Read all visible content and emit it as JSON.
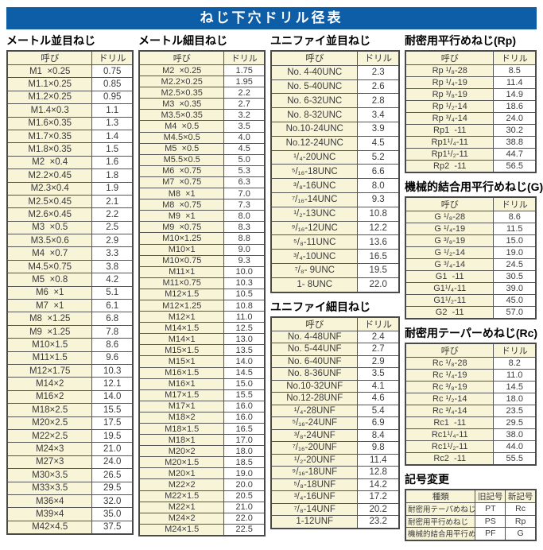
{
  "title": "ねじ下穴ドリル径表",
  "col_headers": {
    "name": "呼び",
    "drill": "ドリル"
  },
  "colors": {
    "header_bar_bg": "#0d5da7",
    "header_bar_text": "#ffffff",
    "cell_yellow": "#f8f4d8",
    "cell_white": "#ffffff",
    "border": "#4a4a4a",
    "text": "#3a3a3a"
  },
  "sections": {
    "metric_coarse": {
      "title": "メートル並目ねじ",
      "rows": [
        [
          "M1  ×0.25",
          "0.75"
        ],
        [
          "M1.1×0.25",
          "0.85"
        ],
        [
          "M1.2×0.25",
          "0.95"
        ],
        [
          "M1.4×0.3",
          "1.1"
        ],
        [
          "M1.6×0.35",
          "1.3"
        ],
        [
          "M1.7×0.35",
          "1.4"
        ],
        [
          "M1.8×0.35",
          "1.5"
        ],
        [
          "M2  ×0.4",
          "1.6"
        ],
        [
          "M2.2×0.45",
          "1.8"
        ],
        [
          "M2.3×0.4",
          "1.9"
        ],
        [
          "M2.5×0.45",
          "2.1"
        ],
        [
          "M2.6×0.45",
          "2.2"
        ],
        [
          "M3  ×0.5",
          "2.5"
        ],
        [
          "M3.5×0.6",
          "2.9"
        ],
        [
          "M4  ×0.7",
          "3.3"
        ],
        [
          "M4.5×0.75",
          "3.8"
        ],
        [
          "M5  ×0.8",
          "4.2"
        ],
        [
          "M6  ×1",
          "5.1"
        ],
        [
          "M7  ×1",
          "6.1"
        ],
        [
          "M8  ×1.25",
          "6.8"
        ],
        [
          "M9  ×1.25",
          "7.8"
        ],
        [
          "M10×1.5",
          "8.6"
        ],
        [
          "M11×1.5",
          "9.6"
        ],
        [
          "M12×1.75",
          "10.3"
        ],
        [
          "M14×2",
          "12.1"
        ],
        [
          "M16×2",
          "14.0"
        ],
        [
          "M18×2.5",
          "15.5"
        ],
        [
          "M20×2.5",
          "17.5"
        ],
        [
          "M22×2.5",
          "19.5"
        ],
        [
          "M24×3",
          "21.0"
        ],
        [
          "M27×3",
          "24.0"
        ],
        [
          "M30×3.5",
          "26.5"
        ],
        [
          "M33×3.5",
          "29.5"
        ],
        [
          "M36×4",
          "32.0"
        ],
        [
          "M39×4",
          "35.0"
        ],
        [
          "M42×4.5",
          "37.5"
        ]
      ]
    },
    "metric_fine": {
      "title": "メートル細目ねじ",
      "rows": [
        [
          "M2  ×0.25",
          "1.75"
        ],
        [
          "M2.2×0.25",
          "1.95"
        ],
        [
          "M2.5×0.35",
          "2.2"
        ],
        [
          "M3  ×0.35",
          "2.7"
        ],
        [
          "M3.5×0.35",
          "3.2"
        ],
        [
          "M4  ×0.5",
          "3.5"
        ],
        [
          "M4.5×0.5",
          "4.0"
        ],
        [
          "M5  ×0.5",
          "4.5"
        ],
        [
          "M5.5×0.5",
          "5.0"
        ],
        [
          "M6  ×0.75",
          "5.3"
        ],
        [
          "M7  ×0.75",
          "6.3"
        ],
        [
          "M8  ×1",
          "7.0"
        ],
        [
          "M8  ×0.75",
          "7.3"
        ],
        [
          "M9  ×1",
          "8.0"
        ],
        [
          "M9  ×0.75",
          "8.3"
        ],
        [
          "M10×1.25",
          "8.8"
        ],
        [
          "M10×1",
          "9.0"
        ],
        [
          "M10×0.75",
          "9.3"
        ],
        [
          "M11×1",
          "10.0"
        ],
        [
          "M11×0.75",
          "10.3"
        ],
        [
          "M12×1.5",
          "10.5"
        ],
        [
          "M12×1.25",
          "10.8"
        ],
        [
          "M12×1",
          "11.0"
        ],
        [
          "M14×1.5",
          "12.5"
        ],
        [
          "M14×1",
          "13.0"
        ],
        [
          "M15×1.5",
          "13.5"
        ],
        [
          "M15×1",
          "14.0"
        ],
        [
          "M16×1.5",
          "14.5"
        ],
        [
          "M16×1",
          "15.0"
        ],
        [
          "M17×1.5",
          "15.5"
        ],
        [
          "M17×1",
          "16.0"
        ],
        [
          "M18×2",
          "16.0"
        ],
        [
          "M18×1.5",
          "16.5"
        ],
        [
          "M18×1",
          "17.0"
        ],
        [
          "M20×2",
          "18.0"
        ],
        [
          "M20×1.5",
          "18.5"
        ],
        [
          "M20×1",
          "19.0"
        ],
        [
          "M22×2",
          "20.0"
        ],
        [
          "M22×1.5",
          "20.5"
        ],
        [
          "M22×1",
          "21.0"
        ],
        [
          "M24×2",
          "22.0"
        ],
        [
          "M24×1.5",
          "22.5"
        ]
      ]
    },
    "unified_coarse": {
      "title": "ユニファイ並目ねじ",
      "rows": [
        [
          "No. 4-40UNC",
          "2.3"
        ],
        [
          "No. 5-40UNC",
          "2.6"
        ],
        [
          "No. 6-32UNC",
          "2.8"
        ],
        [
          "No. 8-32UNC",
          "3.4"
        ],
        [
          "No.10-24UNC",
          "3.9"
        ],
        [
          "No.12-24UNC",
          "4.5"
        ],
        [
          "¹/₄-20UNC",
          "5.2"
        ],
        [
          "⁵/₁₆-18UNC",
          "6.6"
        ],
        [
          "³/₈-16UNC",
          "8.0"
        ],
        [
          "⁷/₁₆-14UNC",
          "9.3"
        ],
        [
          "¹/₂-13UNC",
          "10.8"
        ],
        [
          "⁹/₁₆-12UNC",
          "12.2"
        ],
        [
          "⁵/₈-11UNC",
          "13.6"
        ],
        [
          "³/₄-10UNC",
          "16.5"
        ],
        [
          "⁷/₈- 9UNC",
          "19.5"
        ],
        [
          "1- 8UNC",
          "22.0"
        ]
      ]
    },
    "unified_fine": {
      "title": "ユニファイ細目ねじ",
      "rows": [
        [
          "No. 4-48UNF",
          "2.4"
        ],
        [
          "No. 5-44UNF",
          "2.7"
        ],
        [
          "No. 6-40UNF",
          "2.9"
        ],
        [
          "No. 8-36UNF",
          "3.5"
        ],
        [
          "No.10-32UNF",
          "4.1"
        ],
        [
          "No.12-28UNF",
          "4.6"
        ],
        [
          "¹/₄-28UNF",
          "5.4"
        ],
        [
          "⁵/₁₆-24UNF",
          "6.9"
        ],
        [
          "³/₈-24UNF",
          "8.4"
        ],
        [
          "⁷/₁₆-20UNF",
          "9.8"
        ],
        [
          "¹/₂-20UNF",
          "11.4"
        ],
        [
          "⁹/₁₆-18UNF",
          "12.8"
        ],
        [
          "⁵/₈-18UNF",
          "14.2"
        ],
        [
          "³/₄-16UNF",
          "17.2"
        ],
        [
          "⁷/₈-14UNF",
          "20.2"
        ],
        [
          "1-12UNF",
          "23.2"
        ]
      ]
    },
    "rp": {
      "title": "耐密用平行めねじ(Rp)",
      "rows": [
        [
          "Rp ¹/₈-28",
          "8.5"
        ],
        [
          "Rp ¹/₄-19",
          "11.4"
        ],
        [
          "Rp ³/₈-19",
          "14.9"
        ],
        [
          "Rp ¹/₂-14",
          "18.6"
        ],
        [
          "Rp ³/₄-14",
          "24.0"
        ],
        [
          "Rp1  -11",
          "30.2"
        ],
        [
          "Rp1¹/₄-11",
          "38.8"
        ],
        [
          "Rp1¹/₂-11",
          "44.7"
        ],
        [
          "Rp2  -11",
          "56.5"
        ]
      ]
    },
    "g": {
      "title": "機械的結合用平行めねじ(G)",
      "rows": [
        [
          "G ¹/₈-28",
          "8.6"
        ],
        [
          "G ¹/₄-19",
          "11.5"
        ],
        [
          "G ³/₈-19",
          "15.0"
        ],
        [
          "G ¹/₂-14",
          "19.0"
        ],
        [
          "G ³/₄-14",
          "24.5"
        ],
        [
          "G1  -11",
          "30.5"
        ],
        [
          "G1¹/₄-11",
          "39.0"
        ],
        [
          "G1¹/₂-11",
          "45.0"
        ],
        [
          "G2  -11",
          "57.0"
        ]
      ]
    },
    "rc": {
      "title": "耐密用テーパーめねじ(Rc)",
      "rows": [
        [
          "Rc ¹/₈-28",
          "8.2"
        ],
        [
          "Rc ¹/₄-19",
          "11.0"
        ],
        [
          "Rc ³/₈-19",
          "14.5"
        ],
        [
          "Rc ¹/₂-14",
          "18.0"
        ],
        [
          "Rc ³/₄-14",
          "23.5"
        ],
        [
          "Rc1  -11",
          "29.5"
        ],
        [
          "Rc1¹/₄-11",
          "38.0"
        ],
        [
          "Rc1¹/₂-11",
          "44.0"
        ],
        [
          "Rc2  -11",
          "55.5"
        ]
      ]
    },
    "symbol_change": {
      "title": "記号変更",
      "headers": [
        "種類",
        "旧記号",
        "新記号"
      ],
      "rows": [
        [
          "耐密用テーパめねじ",
          "PT",
          "Rc"
        ],
        [
          "耐密用平行めねじ",
          "PS",
          "Rp"
        ],
        [
          "機械的結合用平行めねじ",
          "PF",
          "G"
        ]
      ]
    }
  }
}
